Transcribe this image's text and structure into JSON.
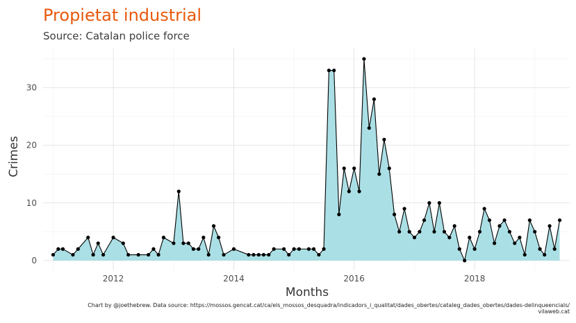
{
  "chart_data": {
    "type": "area",
    "title": "Propietat industrial",
    "subtitle": "Source: Catalan police force",
    "xlabel": "Months",
    "ylabel": "Crimes",
    "xlim": [
      "2010-11-01",
      "2019-08-01"
    ],
    "ylim": [
      -1.7,
      36.8
    ],
    "x_ticks": [
      "2012-01-01",
      "2014-01-01",
      "2016-01-01",
      "2018-01-01"
    ],
    "x_tick_labels": [
      "2012",
      "2014",
      "2016",
      "2018"
    ],
    "y_ticks": [
      0,
      10,
      20,
      30
    ],
    "y_tick_labels": [
      "0",
      "10",
      "20",
      "30"
    ],
    "grid": true,
    "legend": "none",
    "colors": {
      "area": "#aadfe5",
      "line": "#000000",
      "title": "#e8590c"
    },
    "series": [
      {
        "x": [
          "2011-01",
          "2011-02",
          "2011-03",
          "2011-05",
          "2011-06",
          "2011-08",
          "2011-09",
          "2011-10",
          "2011-11",
          "2012-01",
          "2012-03",
          "2012-04",
          "2012-06",
          "2012-08",
          "2012-09",
          "2012-10",
          "2012-11",
          "2013-01",
          "2013-02",
          "2013-03",
          "2013-04",
          "2013-05",
          "2013-06",
          "2013-07",
          "2013-08",
          "2013-09",
          "2013-10",
          "2013-11",
          "2014-01",
          "2014-04",
          "2014-05",
          "2014-06",
          "2014-07",
          "2014-08",
          "2014-09",
          "2014-11",
          "2014-12",
          "2015-01",
          "2015-02",
          "2015-04",
          "2015-05",
          "2015-06",
          "2015-07",
          "2015-08",
          "2015-09",
          "2015-10",
          "2015-11",
          "2015-12",
          "2016-01",
          "2016-02",
          "2016-03",
          "2016-04",
          "2016-05",
          "2016-06",
          "2016-07",
          "2016-08",
          "2016-09",
          "2016-10",
          "2016-11",
          "2016-12",
          "2017-01",
          "2017-02",
          "2017-03",
          "2017-04",
          "2017-05",
          "2017-06",
          "2017-07",
          "2017-08",
          "2017-09",
          "2017-10",
          "2017-11",
          "2017-12",
          "2018-01",
          "2018-02",
          "2018-03",
          "2018-04",
          "2018-05",
          "2018-06",
          "2018-07",
          "2018-08",
          "2018-09",
          "2018-10",
          "2018-11",
          "2018-12",
          "2019-01",
          "2019-02",
          "2019-03",
          "2019-04",
          "2019-05",
          "2019-06"
        ],
        "y": [
          1,
          2,
          2,
          1,
          2,
          4,
          1,
          3,
          1,
          4,
          3,
          1,
          1,
          1,
          2,
          1,
          4,
          3,
          12,
          3,
          3,
          2,
          2,
          4,
          1,
          6,
          4,
          1,
          2,
          1,
          1,
          1,
          1,
          1,
          2,
          2,
          1,
          2,
          2,
          2,
          2,
          1,
          2,
          33,
          33,
          8,
          16,
          12,
          16,
          12,
          35,
          23,
          28,
          15,
          21,
          16,
          8,
          5,
          9,
          5,
          4,
          5,
          7,
          10,
          5,
          10,
          5,
          4,
          6,
          2,
          0,
          4,
          2,
          5,
          9,
          7,
          3,
          6,
          7,
          5,
          3,
          4,
          1,
          7,
          5,
          2,
          1,
          6,
          2,
          7
        ]
      }
    ],
    "caption_lines": [
      "Chart by @joethebrew. Data source: https://mossos.gencat.cat/ca/els_mossos_desquadra/indicadors_i_qualitat/dades_obertes/cataleg_dades_obertes/dades-delinqueencials/",
      "vilaweb.cat"
    ]
  }
}
